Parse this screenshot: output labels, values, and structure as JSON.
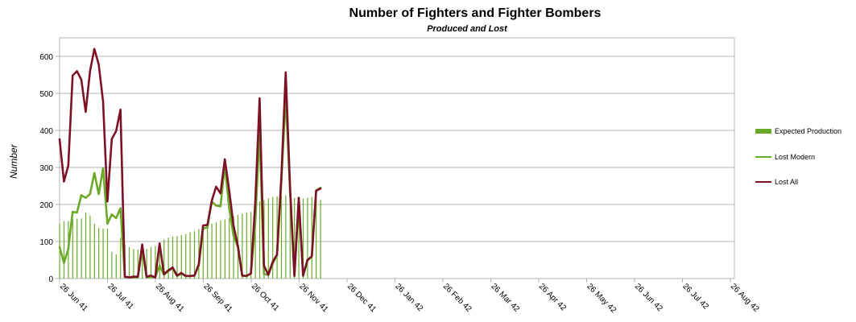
{
  "chart_data": {
    "type": "bar+line",
    "title": "Number of Fighters and Fighter Bombers",
    "subtitle": "Produced and Lost",
    "ylabel": "Number",
    "xlabel": "",
    "ylim": [
      0,
      650
    ],
    "yticks": [
      0,
      100,
      200,
      300,
      400,
      500,
      600
    ],
    "x_tick_labels": [
      "26 Jun 41",
      "26 Jul 41",
      "26 Aug 41",
      "26 Sep 41",
      "26 Oct 41",
      "26 Nov 41",
      "26 Dec 41",
      "26 Jan 42",
      "26 Feb 42",
      "26 Mar 42",
      "26 Apr 42",
      "26 May 42",
      "26 Jun 42",
      "26 Jul 42",
      "26 Aug 42"
    ],
    "x_start": "26 Jun 41",
    "step_days": 5,
    "grid": true,
    "legend_position": "right",
    "colors": {
      "expected": "#6aaa28",
      "lost_modern": "#6aaa28",
      "lost_all": "#7b1226",
      "grid": "#b3b3b3"
    },
    "series": [
      {
        "name": "Expected Production",
        "kind": "bar",
        "values": [
          148,
          155,
          155,
          160,
          162,
          162,
          178,
          170,
          148,
          137,
          135,
          135,
          72,
          65,
          110,
          92,
          85,
          80,
          78,
          80,
          80,
          85,
          88,
          93,
          105,
          110,
          113,
          115,
          117,
          120,
          125,
          128,
          133,
          137,
          140,
          148,
          152,
          157,
          160,
          163,
          168,
          172,
          175,
          178,
          180,
          185,
          208,
          212,
          217,
          220,
          222,
          223,
          225,
          220,
          218,
          215,
          216,
          218,
          220,
          222,
          212,
          0
        ]
      },
      {
        "name": "Lost Modern",
        "kind": "line",
        "values": [
          85,
          42,
          80,
          180,
          178,
          225,
          218,
          228,
          285,
          228,
          298,
          148,
          173,
          163,
          190,
          5,
          3,
          3,
          3,
          80,
          3,
          5,
          3,
          35,
          10,
          20,
          28,
          7,
          13,
          7,
          7,
          7,
          35,
          135,
          138,
          208,
          197,
          195,
          307,
          190,
          115,
          85,
          7,
          7,
          13,
          150,
          400,
          12,
          10,
          40,
          63,
          260,
          492,
          233,
          7,
          215,
          7,
          48,
          60,
          238,
          245
        ]
      },
      {
        "name": "Lost All",
        "kind": "line",
        "values": [
          376,
          262,
          305,
          548,
          560,
          537,
          450,
          560,
          620,
          578,
          478,
          208,
          377,
          398,
          456,
          5,
          3,
          5,
          5,
          92,
          5,
          8,
          3,
          95,
          12,
          22,
          30,
          8,
          15,
          7,
          7,
          8,
          38,
          143,
          145,
          210,
          248,
          230,
          322,
          238,
          143,
          88,
          8,
          7,
          14,
          205,
          487,
          35,
          10,
          45,
          65,
          275,
          557,
          247,
          7,
          218,
          8,
          50,
          60,
          237,
          243
        ]
      }
    ]
  }
}
